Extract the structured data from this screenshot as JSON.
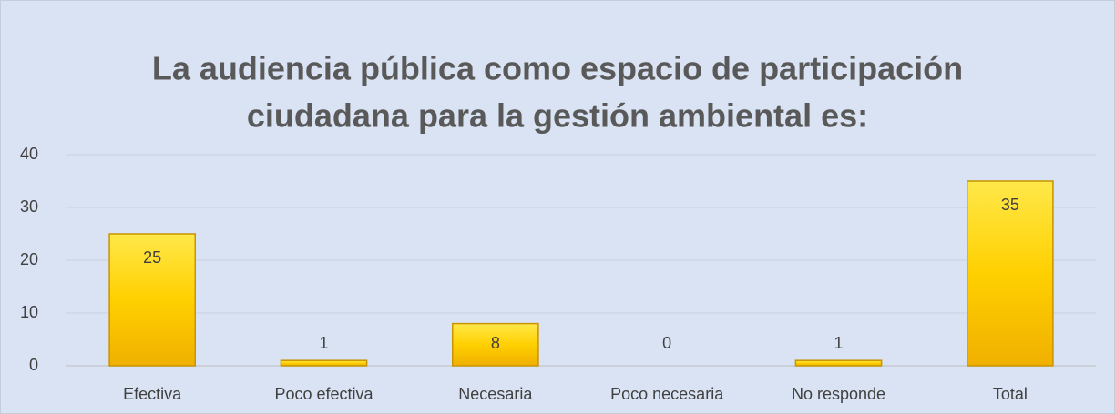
{
  "chart_data": {
    "type": "bar",
    "title": [
      "La audiencia pública  como espacio de participación",
      "ciudadana para la gestión ambiental es:"
    ],
    "categories": [
      "Efectiva",
      "Poco efectiva",
      "Necesaria",
      "Poco necesaria",
      "No responde",
      "Total"
    ],
    "values": [
      25,
      1,
      8,
      0,
      1,
      35
    ],
    "color": "#ffd400",
    "ylim": [
      0,
      40
    ],
    "yticks": [
      0,
      10,
      20,
      30,
      40
    ],
    "grid": true
  }
}
